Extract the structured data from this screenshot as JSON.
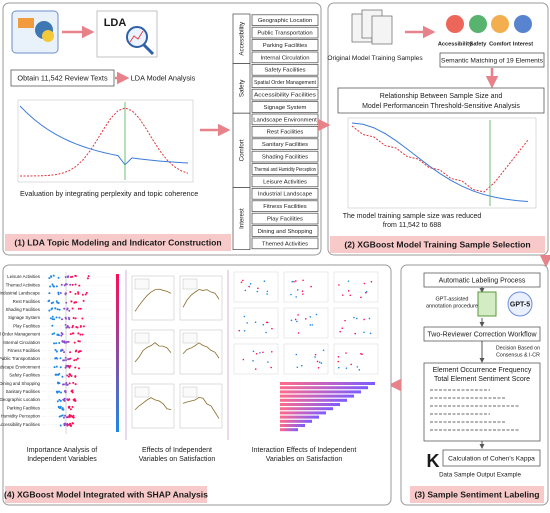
{
  "panel1": {
    "label": "(1) LDA Topic Modeling and Indicator Construction",
    "logo": "LDA",
    "steps": [
      "Obtain 11,542 Review Texts",
      "LDA Model Analysis"
    ],
    "chart_caption": "Evaluation by integrating perplexity and topic coherence",
    "dimensions": [
      {
        "name": "Accessibility",
        "elements": [
          "Geographic Location",
          "Public Transportation",
          "Parking Facilities",
          "Internal Circulation"
        ]
      },
      {
        "name": "Safety",
        "elements": [
          "Safety Facilities",
          "Spatial Order Management",
          "Accessibility Facilities",
          "Signage System"
        ]
      },
      {
        "name": "Comfort",
        "elements": [
          "Landscape Environment",
          "Rest Facilities",
          "Sanitary Facilities",
          "Shading Facilities",
          "Thermal and Humidity Perception",
          "Leisure Activities"
        ]
      },
      {
        "name": "Interest",
        "elements": [
          "Industrial Landscape",
          "Fitness Facilities",
          "Play Facilities",
          "Dining and Shopping",
          "Themed Activities"
        ]
      }
    ]
  },
  "panel2": {
    "label": "(2) XGBoost Model Training Sample Selection",
    "samples": "Original Model Training Samples",
    "dimensions": [
      "Accessibility",
      "Safety",
      "Comfort",
      "Interest"
    ],
    "matching": "Semantic Matching of 19 Elements",
    "analysis": [
      "Relationship Between Sample Size and",
      "Model Performancein Threshold-Sensitive Analysis"
    ],
    "result": [
      "The model training sample size was reduced",
      "from 11,542 to 688"
    ]
  },
  "panel3": {
    "label": "(3) Sample Sentiment Labeling",
    "process": "Automatic Labeling Process",
    "gpt_note": [
      "GPT-assisted",
      "annotation procedure"
    ],
    "gpt": "GPT-5",
    "workflow": "Two-Reviewer Correction Workflow",
    "decision": [
      "Decision Based on",
      "Consensus & I-CR"
    ],
    "scores": [
      "Element Occurrence Frequency",
      "Total Element Sentiment Score"
    ],
    "kappa": "Calculation of Cohen's Kappa",
    "output": "Data Sample Output Example"
  },
  "panel4": {
    "label": "(4) XGBoost Model Integrated with SHAP Analysis",
    "features": [
      "Leisure Activities",
      "Themed Activities",
      "Industrial Landscape",
      "Rest Facilities",
      "Shading Facilities",
      "Signage System",
      "Play Facilities",
      "Spatial Order Management",
      "Internal Circulation",
      "Fitness Facilities",
      "Public Transportation",
      "Landscape Environment",
      "Safety Facilities",
      "Dining and Shopping",
      "Sanitary Facilities",
      "Geographic Location",
      "Parking Facilities",
      "Thermal and Humidity Perception",
      "Accessibility Facilities"
    ],
    "captions": [
      [
        "Importance Analysis of",
        "Independent Variables"
      ],
      [
        "Effects of Independent",
        "Variables on Satisfaction"
      ],
      [
        "Interaction Effects of Independent",
        "Variables on Satisfaction"
      ]
    ]
  }
}
